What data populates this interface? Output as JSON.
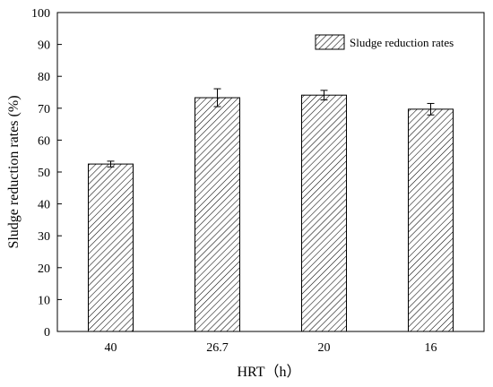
{
  "chart_data": {
    "type": "bar",
    "categories": [
      "40",
      "26.7",
      "20",
      "16"
    ],
    "values": [
      52.5,
      73.3,
      74.1,
      69.7
    ],
    "errors": [
      0.9,
      2.8,
      1.5,
      1.8
    ],
    "xlabel": "HRT（h）",
    "ylabel": "Sludge reduction rates (%)",
    "ylim": [
      0,
      100
    ],
    "yticks": [
      "0",
      "10",
      "20",
      "30",
      "40",
      "50",
      "60",
      "70",
      "80",
      "90",
      "100"
    ],
    "series": [
      {
        "name": "Sludge reduction rates",
        "values": [
          52.5,
          73.3,
          74.1,
          69.7
        ]
      }
    ],
    "legend_position": "top-right",
    "bar_fill": "diagonal-hatch",
    "colors": {
      "stroke": "#000000",
      "background": "#ffffff"
    },
    "grid": false
  }
}
